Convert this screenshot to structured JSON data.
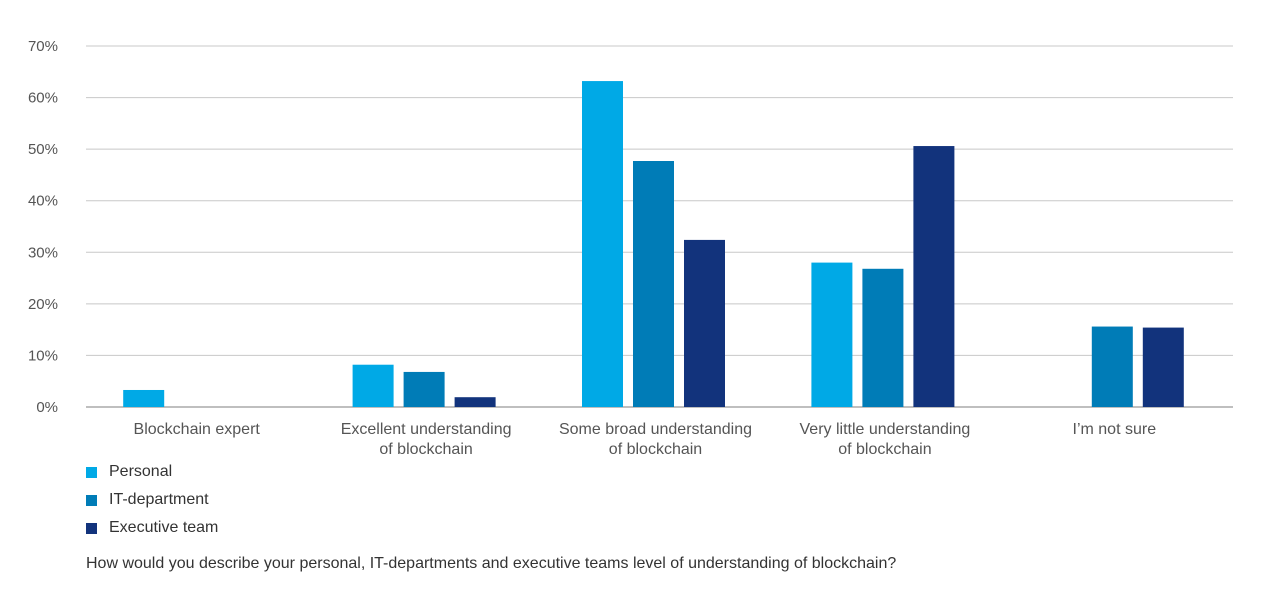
{
  "chart_data": {
    "type": "bar",
    "categories": [
      [
        "Blockchain expert"
      ],
      [
        "Excellent understanding",
        "of blockchain"
      ],
      [
        "Some broad understanding",
        "of blockchain"
      ],
      [
        "Very little understanding",
        "of blockchain"
      ],
      [
        "I’m not sure"
      ]
    ],
    "series": [
      {
        "name": "Personal",
        "color": "#00A9E6",
        "values": [
          3.3,
          8.2,
          63.2,
          28.0,
          null
        ]
      },
      {
        "name": "IT-department",
        "color": "#007CB7",
        "values": [
          null,
          6.8,
          47.7,
          26.8,
          15.6
        ]
      },
      {
        "name": "Executive team",
        "color": "#12337C",
        "values": [
          null,
          1.9,
          32.4,
          50.6,
          15.4
        ]
      }
    ],
    "ylim": [
      0,
      70
    ],
    "yticks": [
      0,
      10,
      20,
      30,
      40,
      50,
      60,
      70
    ],
    "ytick_labels": [
      "0%",
      "10%",
      "20%",
      "30%",
      "40%",
      "50%",
      "60%",
      "70%"
    ],
    "grid": true,
    "legend_position": "bottom-left",
    "question": "How would you describe your personal, IT-departments and executive teams level of understanding of blockchain?"
  }
}
